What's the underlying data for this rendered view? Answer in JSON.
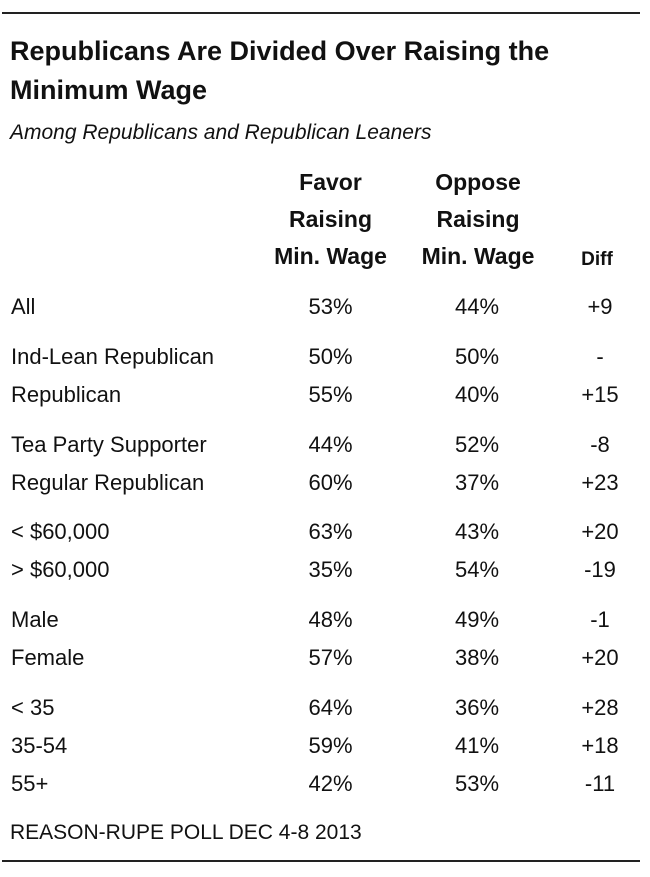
{
  "chart_data": {
    "type": "table",
    "title": "Republicans Are Divided Over Raising the Minimum Wage",
    "subtitle": "Among Republicans and Republican Leaners",
    "columns": {
      "favor": [
        "Favor",
        "Raising",
        "Min. Wage"
      ],
      "oppose": [
        "Oppose",
        "Raising",
        "Min. Wage"
      ],
      "diff": "Diff"
    },
    "rows": [
      {
        "label": "All",
        "favor": "53%",
        "oppose": "44%",
        "diff": "+9"
      },
      {
        "label": "Ind-Lean Republican",
        "favor": "50%",
        "oppose": "50%",
        "diff": "-"
      },
      {
        "label": "Republican",
        "favor": "55%",
        "oppose": "40%",
        "diff": "+15"
      },
      {
        "label": "Tea Party Supporter",
        "favor": "44%",
        "oppose": "52%",
        "diff": "-8"
      },
      {
        "label": "Regular Republican",
        "favor": "60%",
        "oppose": "37%",
        "diff": "+23"
      },
      {
        "label": "< $60,000",
        "favor": "63%",
        "oppose": "43%",
        "diff": "+20"
      },
      {
        "label": "> $60,000",
        "favor": "35%",
        "oppose": "54%",
        "diff": "-19"
      },
      {
        "label": "Male",
        "favor": "48%",
        "oppose": "49%",
        "diff": "-1"
      },
      {
        "label": "Female",
        "favor": "57%",
        "oppose": "38%",
        "diff": "+20"
      },
      {
        "label": "< 35",
        "favor": "64%",
        "oppose": "36%",
        "diff": "+28"
      },
      {
        "label": "35-54",
        "favor": "59%",
        "oppose": "41%",
        "diff": "+18"
      },
      {
        "label": "55+",
        "favor": "42%",
        "oppose": "53%",
        "diff": "-11"
      }
    ],
    "source": "REASON-RUPE POLL DEC 4-8 2013"
  }
}
